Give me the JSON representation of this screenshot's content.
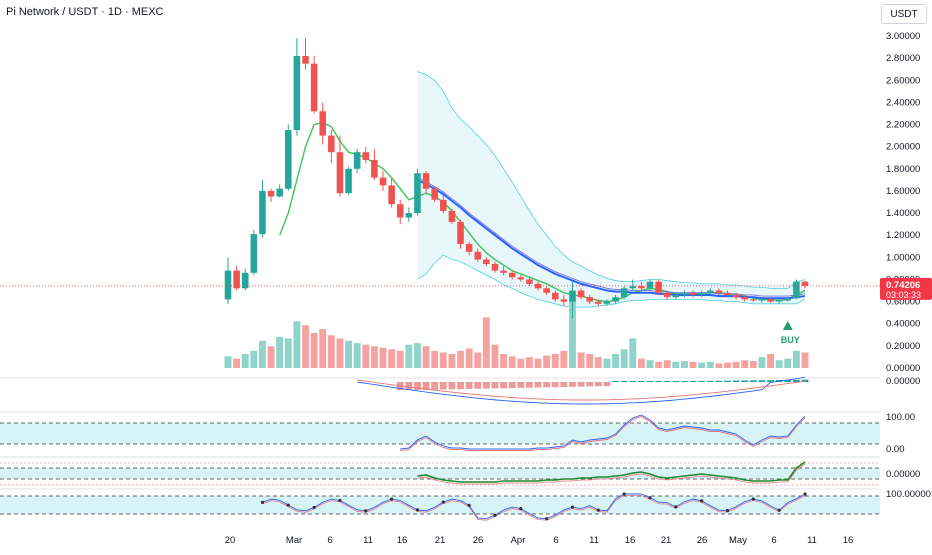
{
  "header": {
    "title": "Pi Network / USDT · 1D · MEXC",
    "currency_button": "USDT"
  },
  "colors": {
    "up": "#26a69a",
    "down": "#ef5350",
    "ma_blue": "#2962ff",
    "ma_green": "#3cc455",
    "band_fill": "#e3f6f9",
    "band_line": "#4dd0e1",
    "price_tag": "#f23645"
  },
  "chart_data": {
    "type": "candlestick",
    "price_axis": [
      "3.00000",
      "2.80000",
      "2.60000",
      "2.40000",
      "2.20000",
      "2.00000",
      "1.80000",
      "1.60000",
      "1.40000",
      "1.20000",
      "1.00000",
      "0.80000",
      "0.60000",
      "0.40000",
      "0.20000",
      "0.00000"
    ],
    "ylim": [
      0,
      3
    ],
    "x_labels": [
      "20",
      "Mar",
      "6",
      "11",
      "16",
      "21",
      "26",
      "Apr",
      "6",
      "11",
      "16",
      "21",
      "26",
      "May",
      "6",
      "11",
      "16"
    ],
    "last_price": "0.74206",
    "countdown": "03:03:33",
    "signal_label": "BUY",
    "candles": [
      [
        0.62,
        1.0,
        0.58,
        0.88
      ],
      [
        0.88,
        0.92,
        0.7,
        0.72
      ],
      [
        0.72,
        0.9,
        0.7,
        0.86
      ],
      [
        0.86,
        1.25,
        0.84,
        1.21
      ],
      [
        1.21,
        1.7,
        1.18,
        1.6
      ],
      [
        1.6,
        1.62,
        1.5,
        1.55
      ],
      [
        1.55,
        1.66,
        1.54,
        1.62
      ],
      [
        1.62,
        2.2,
        1.6,
        2.15
      ],
      [
        2.15,
        2.98,
        2.1,
        2.82
      ],
      [
        2.82,
        2.98,
        2.7,
        2.75
      ],
      [
        2.75,
        2.82,
        2.3,
        2.32
      ],
      [
        2.32,
        2.4,
        2.02,
        2.1
      ],
      [
        2.1,
        2.15,
        1.85,
        1.95
      ],
      [
        1.95,
        2.1,
        1.55,
        1.58
      ],
      [
        1.58,
        1.82,
        1.56,
        1.8
      ],
      [
        1.8,
        1.98,
        1.76,
        1.95
      ],
      [
        1.95,
        2.0,
        1.85,
        1.88
      ],
      [
        1.88,
        1.98,
        1.7,
        1.72
      ],
      [
        1.72,
        1.78,
        1.6,
        1.65
      ],
      [
        1.65,
        1.72,
        1.45,
        1.48
      ],
      [
        1.48,
        1.52,
        1.3,
        1.36
      ],
      [
        1.36,
        1.45,
        1.32,
        1.4
      ],
      [
        1.4,
        1.8,
        1.38,
        1.76
      ],
      [
        1.76,
        1.78,
        1.58,
        1.62
      ],
      [
        1.62,
        1.64,
        1.5,
        1.52
      ],
      [
        1.52,
        1.56,
        1.4,
        1.42
      ],
      [
        1.42,
        1.44,
        1.3,
        1.32
      ],
      [
        1.32,
        1.34,
        1.08,
        1.12
      ],
      [
        1.12,
        1.14,
        1.02,
        1.05
      ],
      [
        1.05,
        1.08,
        0.96,
        0.98
      ],
      [
        0.98,
        1.0,
        0.92,
        0.94
      ],
      [
        0.94,
        0.96,
        0.86,
        0.88
      ],
      [
        0.88,
        0.92,
        0.84,
        0.86
      ],
      [
        0.86,
        0.88,
        0.8,
        0.82
      ],
      [
        0.82,
        0.84,
        0.78,
        0.8
      ],
      [
        0.8,
        0.82,
        0.74,
        0.76
      ],
      [
        0.76,
        0.78,
        0.7,
        0.72
      ],
      [
        0.72,
        0.74,
        0.66,
        0.68
      ],
      [
        0.68,
        0.7,
        0.6,
        0.62
      ],
      [
        0.62,
        0.66,
        0.56,
        0.6
      ],
      [
        0.6,
        0.78,
        0.45,
        0.7
      ],
      [
        0.7,
        0.72,
        0.62,
        0.64
      ],
      [
        0.64,
        0.66,
        0.58,
        0.6
      ],
      [
        0.6,
        0.62,
        0.56,
        0.58
      ],
      [
        0.58,
        0.62,
        0.56,
        0.6
      ],
      [
        0.6,
        0.66,
        0.58,
        0.64
      ],
      [
        0.64,
        0.74,
        0.62,
        0.72
      ],
      [
        0.72,
        0.8,
        0.7,
        0.74
      ],
      [
        0.74,
        0.78,
        0.7,
        0.72
      ],
      [
        0.72,
        0.8,
        0.7,
        0.78
      ],
      [
        0.78,
        0.8,
        0.66,
        0.68
      ],
      [
        0.68,
        0.7,
        0.62,
        0.64
      ],
      [
        0.64,
        0.68,
        0.62,
        0.66
      ],
      [
        0.66,
        0.7,
        0.64,
        0.68
      ],
      [
        0.68,
        0.7,
        0.64,
        0.66
      ],
      [
        0.66,
        0.7,
        0.64,
        0.68
      ],
      [
        0.68,
        0.72,
        0.66,
        0.7
      ],
      [
        0.7,
        0.72,
        0.66,
        0.68
      ],
      [
        0.68,
        0.7,
        0.64,
        0.66
      ],
      [
        0.66,
        0.68,
        0.62,
        0.64
      ],
      [
        0.64,
        0.66,
        0.6,
        0.62
      ],
      [
        0.62,
        0.64,
        0.6,
        0.61
      ],
      [
        0.61,
        0.63,
        0.59,
        0.62
      ],
      [
        0.62,
        0.63,
        0.59,
        0.6
      ],
      [
        0.6,
        0.62,
        0.58,
        0.61
      ],
      [
        0.61,
        0.64,
        0.6,
        0.63
      ],
      [
        0.63,
        0.8,
        0.62,
        0.78
      ],
      [
        0.78,
        0.79,
        0.72,
        0.742
      ]
    ],
    "volumes": [
      15,
      12,
      18,
      22,
      35,
      28,
      40,
      38,
      60,
      55,
      45,
      50,
      42,
      38,
      35,
      32,
      30,
      28,
      26,
      24,
      22,
      30,
      32,
      28,
      22,
      20,
      18,
      22,
      25,
      20,
      65,
      30,
      18,
      15,
      12,
      14,
      12,
      16,
      18,
      22,
      90,
      20,
      18,
      14,
      12,
      18,
      24,
      38,
      12,
      10,
      8,
      10,
      8,
      9,
      8,
      7,
      8,
      6,
      7,
      8,
      10,
      9,
      14,
      18,
      10,
      12,
      22,
      20
    ],
    "ma_blue": [
      null,
      null,
      null,
      null,
      null,
      null,
      null,
      null,
      null,
      null,
      null,
      null,
      null,
      null,
      null,
      null,
      null,
      null,
      null,
      null,
      null,
      null,
      1.72,
      1.68,
      1.64,
      1.59,
      1.53,
      1.47,
      1.4,
      1.34,
      1.28,
      1.22,
      1.16,
      1.1,
      1.05,
      1.0,
      0.95,
      0.91,
      0.87,
      0.84,
      0.81,
      0.78,
      0.76,
      0.74,
      0.72,
      0.71,
      0.71,
      0.7,
      0.7,
      0.7,
      0.69,
      0.69,
      0.68,
      0.68,
      0.68,
      0.68,
      0.68,
      0.67,
      0.67,
      0.67,
      0.66,
      0.66,
      0.65,
      0.65,
      0.65,
      0.65,
      0.66,
      0.67
    ],
    "ma_green": [
      null,
      null,
      null,
      null,
      null,
      null,
      1.2,
      1.4,
      1.7,
      2.0,
      2.2,
      2.22,
      2.18,
      2.05,
      1.95,
      1.93,
      1.9,
      1.85,
      1.8,
      1.72,
      1.62,
      1.52,
      1.55,
      1.58,
      1.55,
      1.5,
      1.42,
      1.32,
      1.22,
      1.12,
      1.04,
      0.98,
      0.93,
      0.88,
      0.85,
      0.82,
      0.79,
      0.76,
      0.72,
      0.68,
      0.66,
      0.65,
      0.63,
      0.61,
      0.6,
      0.61,
      0.64,
      0.68,
      0.7,
      0.72,
      0.71,
      0.69,
      0.67,
      0.67,
      0.67,
      0.67,
      0.68,
      0.68,
      0.67,
      0.66,
      0.65,
      0.63,
      0.62,
      0.62,
      0.61,
      0.62,
      0.66,
      0.7
    ],
    "band_upper": [
      null,
      null,
      null,
      null,
      null,
      null,
      null,
      null,
      null,
      null,
      null,
      null,
      null,
      null,
      null,
      null,
      null,
      null,
      null,
      null,
      null,
      null,
      2.68,
      2.65,
      2.6,
      2.5,
      2.35,
      2.25,
      2.18,
      2.1,
      2.02,
      1.92,
      1.8,
      1.68,
      1.55,
      1.42,
      1.3,
      1.2,
      1.1,
      1.02,
      0.96,
      0.92,
      0.88,
      0.84,
      0.81,
      0.79,
      0.78,
      0.78,
      0.79,
      0.8,
      0.8,
      0.79,
      0.78,
      0.77,
      0.77,
      0.76,
      0.76,
      0.76,
      0.75,
      0.75,
      0.74,
      0.73,
      0.73,
      0.72,
      0.72,
      0.72,
      0.78,
      0.8
    ],
    "band_lower": [
      null,
      null,
      null,
      null,
      null,
      null,
      null,
      null,
      null,
      null,
      null,
      null,
      null,
      null,
      null,
      null,
      null,
      null,
      null,
      null,
      null,
      null,
      0.8,
      0.85,
      0.95,
      1.02,
      0.98,
      0.96,
      0.92,
      0.88,
      0.84,
      0.8,
      0.75,
      0.72,
      0.68,
      0.65,
      0.62,
      0.6,
      0.58,
      0.56,
      0.55,
      0.55,
      0.55,
      0.56,
      0.57,
      0.58,
      0.6,
      0.61,
      0.61,
      0.62,
      0.62,
      0.62,
      0.62,
      0.62,
      0.62,
      0.62,
      0.61,
      0.61,
      0.6,
      0.6,
      0.59,
      0.58,
      0.58,
      0.58,
      0.58,
      0.58,
      0.58,
      0.62
    ],
    "indicator_axis": {
      "macd": "0.00000",
      "rsi_top": "100.00",
      "rsi_bottom": "0.00",
      "osc": "0.00000",
      "cci": "100.00000"
    }
  }
}
